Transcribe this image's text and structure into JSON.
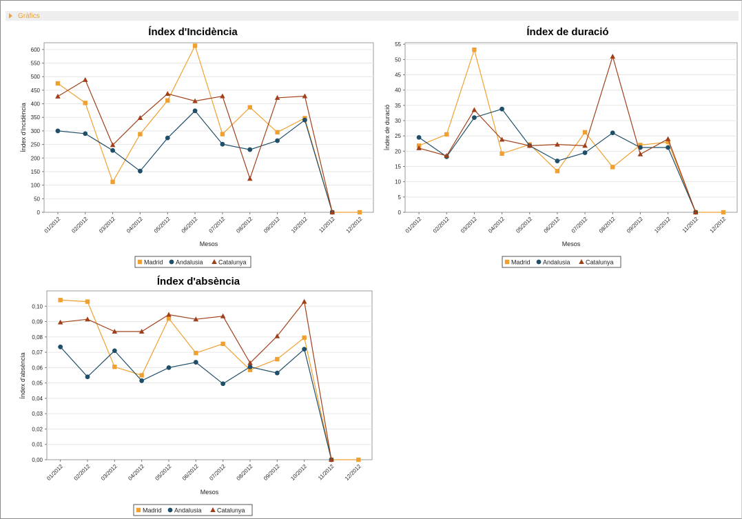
{
  "section": {
    "title": "Gràfics"
  },
  "colors": {
    "Madrid": "#f0a030",
    "Andalusia": "#1f4e68",
    "Catalunya": "#a0401a"
  },
  "chart_data": [
    {
      "type": "line",
      "title": "Índex d'Incidència",
      "xlabel": "Mesos",
      "ylabel": "Índex d'Incidència",
      "ylim": [
        0,
        625
      ],
      "yticks": [
        0,
        50,
        100,
        150,
        200,
        250,
        300,
        350,
        400,
        450,
        500,
        550,
        600
      ],
      "ytick_labels": [
        "0",
        "50",
        "100",
        "150",
        "200",
        "250",
        "300",
        "350",
        "400",
        "450",
        "500",
        "550",
        "600"
      ],
      "categories": [
        "01/2012",
        "02/2012",
        "03/2012",
        "04/2012",
        "05/2012",
        "06/2012",
        "07/2012",
        "08/2012",
        "09/2012",
        "10/2012",
        "11/2012",
        "12/2012"
      ],
      "legend": [
        "Madrid",
        "Andalusia",
        "Catalunya"
      ],
      "series": [
        {
          "name": "Madrid",
          "marker": "square",
          "values": [
            475,
            403,
            112,
            288,
            412,
            614,
            288,
            387,
            295,
            347,
            0,
            0
          ]
        },
        {
          "name": "Andalusia",
          "marker": "circle",
          "values": [
            300,
            290,
            228,
            152,
            274,
            374,
            251,
            231,
            264,
            340,
            0,
            null
          ]
        },
        {
          "name": "Catalunya",
          "marker": "triangle",
          "values": [
            427,
            488,
            248,
            348,
            437,
            410,
            428,
            124,
            422,
            428,
            0,
            null
          ]
        }
      ]
    },
    {
      "type": "line",
      "title": "Índex de duració",
      "xlabel": "Mesos",
      "ylabel": "Índex de duració",
      "ylim": [
        0,
        55.5
      ],
      "yticks": [
        0,
        5,
        10,
        15,
        20,
        25,
        30,
        35,
        40,
        45,
        50,
        55
      ],
      "ytick_labels": [
        "0",
        "5",
        "10",
        "15",
        "20",
        "25",
        "30",
        "35",
        "40",
        "45",
        "50",
        "55"
      ],
      "categories": [
        "01/2012",
        "02/2012",
        "03/2012",
        "04/2012",
        "05/2012",
        "06/2012",
        "07/2012",
        "08/2012",
        "09/2012",
        "10/2012",
        "11/2012",
        "12/2012"
      ],
      "legend": [
        "Madrid",
        "Andalusia",
        "Catalunya"
      ],
      "series": [
        {
          "name": "Madrid",
          "marker": "square",
          "values": [
            21.8,
            25.5,
            53.2,
            19.2,
            22.2,
            13.5,
            26.2,
            14.8,
            22.0,
            23.0,
            0,
            0
          ]
        },
        {
          "name": "Andalusia",
          "marker": "circle",
          "values": [
            24.5,
            18.2,
            31.0,
            33.8,
            21.8,
            16.8,
            19.5,
            26.0,
            21.2,
            21.2,
            0,
            null
          ]
        },
        {
          "name": "Catalunya",
          "marker": "triangle",
          "values": [
            21.0,
            18.5,
            33.5,
            23.8,
            21.8,
            22.2,
            21.8,
            51.0,
            19.0,
            24.0,
            0,
            null
          ]
        }
      ]
    },
    {
      "type": "line",
      "title": "Índex d'absència",
      "xlabel": "Mesos",
      "ylabel": "Índex d'absència",
      "ylim": [
        0,
        0.11
      ],
      "yticks": [
        0,
        0.01,
        0.02,
        0.03,
        0.04,
        0.05,
        0.06,
        0.07,
        0.08,
        0.09,
        0.1
      ],
      "ytick_labels": [
        "0,00",
        "0,01",
        "0,02",
        "0,03",
        "0,04",
        "0,05",
        "0,06",
        "0,07",
        "0,08",
        "0,09",
        "0,10"
      ],
      "categories": [
        "01/2012",
        "02/2012",
        "03/2012",
        "04/2012",
        "05/2012",
        "06/2012",
        "07/2012",
        "08/2012",
        "09/2012",
        "10/2012",
        "11/2012",
        "12/2012"
      ],
      "legend": [
        "Madrid",
        "Andalusia",
        "Catalunya"
      ],
      "series": [
        {
          "name": "Madrid",
          "marker": "square",
          "values": [
            0.104,
            0.103,
            0.0605,
            0.055,
            0.092,
            0.0695,
            0.0755,
            0.0585,
            0.0655,
            0.0795,
            0,
            0
          ]
        },
        {
          "name": "Andalusia",
          "marker": "circle",
          "values": [
            0.0735,
            0.054,
            0.071,
            0.0515,
            0.06,
            0.0635,
            0.0495,
            0.0605,
            0.0565,
            0.072,
            0,
            null
          ]
        },
        {
          "name": "Catalunya",
          "marker": "triangle",
          "values": [
            0.0895,
            0.0915,
            0.0835,
            0.0835,
            0.0945,
            0.0915,
            0.0935,
            0.063,
            0.0805,
            0.103,
            0,
            null
          ]
        }
      ]
    }
  ]
}
